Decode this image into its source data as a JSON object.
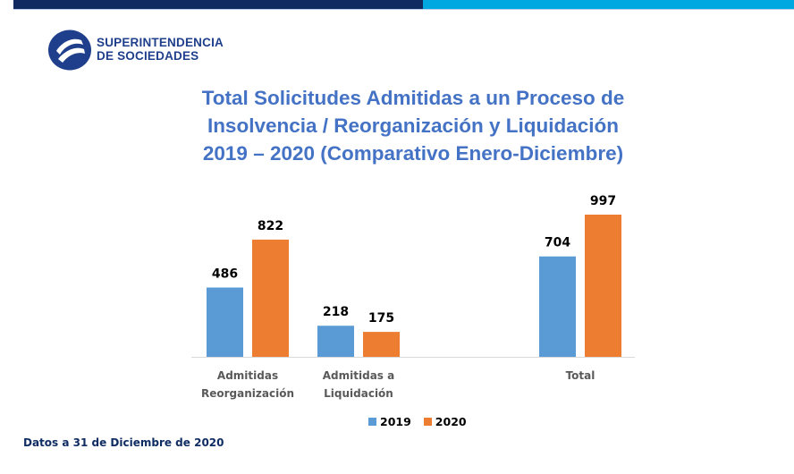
{
  "header": {
    "logo_line1": "SUPERINTENDENCIA",
    "logo_line2": "DE SOCIEDADES",
    "logo_icon": "superintendencia-logo-icon",
    "colors": {
      "bar_dark": "#112b60",
      "bar_light": "#00a8e2",
      "logo": "#1f3f8c"
    }
  },
  "footnote": "Datos a 31 de Diciembre de 2020",
  "chart_data": {
    "type": "bar",
    "title_lines": [
      "Total Solicitudes Admitidas a un Proceso de",
      "Insolvencia / Reorganización y Liquidación",
      "2019 – 2020 (Comparativo Enero-Diciembre)"
    ],
    "categories": [
      [
        "Admitidas",
        "Reorganización"
      ],
      [
        "Admitidas a",
        "Liquidación"
      ],
      [
        ""
      ],
      [
        "Total"
      ]
    ],
    "series": [
      {
        "name": "2019",
        "color": "#5b9bd5",
        "values": [
          486,
          218,
          null,
          704
        ]
      },
      {
        "name": "2020",
        "color": "#ed7d31",
        "values": [
          822,
          175,
          null,
          997
        ]
      }
    ],
    "xlabel": "",
    "ylabel": "",
    "ylim": [
      0,
      1000
    ],
    "grid": false,
    "data_labels": true,
    "legend_position": "bottom"
  }
}
